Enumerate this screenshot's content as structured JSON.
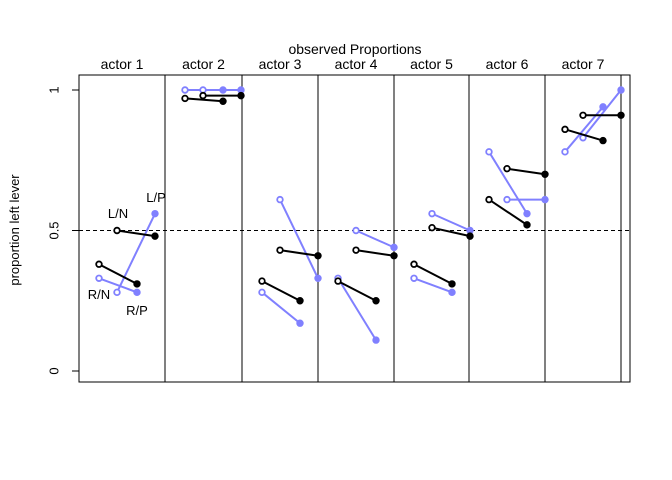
{
  "chart_data": {
    "type": "line",
    "title": "observed Proportions",
    "xlabel": "",
    "ylabel": "proportion left lever",
    "ylim": [
      0,
      1
    ],
    "yticks": [
      {
        "value": 0,
        "label": "0"
      },
      {
        "value": 0.5,
        "label": "0.5"
      },
      {
        "value": 1,
        "label": "1"
      }
    ],
    "reference_line": {
      "value": 0.5,
      "style": "dashed"
    },
    "panel_labels": [
      "actor 1",
      "actor 2",
      "actor 3",
      "actor 4",
      "actor 5",
      "actor 6",
      "actor 7"
    ],
    "colors": {
      "partner_absent": "#000000",
      "partner_present": "#8080ff"
    },
    "point_labels": [
      "R/N",
      "L/N",
      "R/P",
      "L/P"
    ],
    "series": [
      {
        "actor": "actor 1",
        "R/N": 0.33,
        "L/N": 0.28,
        "R/P": 0.38,
        "L/P": 0.31,
        "L/N_present": 0.56,
        "R/P_present": 0.5,
        "L/P_present": 0.48
      }
    ],
    "actors": [
      {
        "name": "actor 1",
        "black": [
          0.38,
          0.31,
          0.5,
          0.48
        ],
        "blue": [
          0.33,
          0.28,
          0.28,
          0.56
        ]
      },
      {
        "name": "actor 2",
        "black": [
          0.97,
          0.96,
          0.98,
          0.98
        ],
        "blue": [
          1.0,
          1.0,
          1.0,
          1.0
        ]
      },
      {
        "name": "actor 3",
        "black": [
          0.32,
          0.25,
          0.43,
          0.41
        ],
        "blue": [
          0.28,
          0.17,
          0.61,
          0.33
        ]
      },
      {
        "name": "actor 4",
        "black": [
          0.32,
          0.25,
          0.43,
          0.41
        ],
        "blue": [
          0.33,
          0.11,
          0.5,
          0.44
        ]
      },
      {
        "name": "actor 5",
        "black": [
          0.38,
          0.31,
          0.51,
          0.48
        ],
        "blue": [
          0.33,
          0.28,
          0.56,
          0.5
        ]
      },
      {
        "name": "actor 6",
        "black": [
          0.61,
          0.52,
          0.72,
          0.7
        ],
        "blue": [
          0.78,
          0.56,
          0.61,
          0.61
        ]
      },
      {
        "name": "actor 7",
        "black": [
          0.86,
          0.82,
          0.91,
          0.91
        ],
        "blue": [
          0.78,
          0.94,
          0.83,
          1.0
        ]
      }
    ]
  }
}
